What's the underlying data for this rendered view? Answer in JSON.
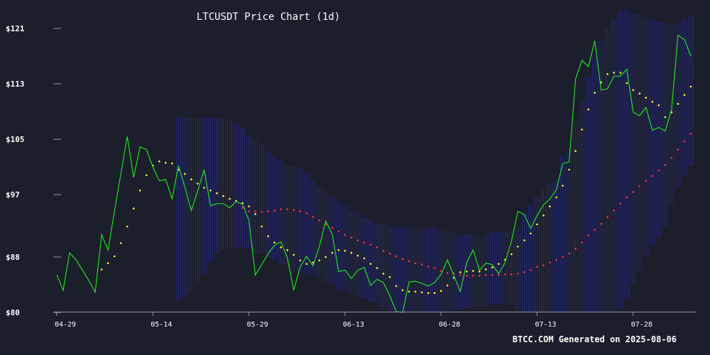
{
  "chart_data": {
    "type": "line",
    "title": "LTCUSDT Price Chart (1d)",
    "footer": "BTCC.COM Generated on 2025-08-06",
    "xlabel": "",
    "ylabel": "",
    "x_ticks": [
      "04-29",
      "05-14",
      "05-29",
      "06-13",
      "06-28",
      "07-13",
      "07-28"
    ],
    "y_ticks": [
      "$121",
      "$113",
      "$105",
      "$97",
      "$88",
      "$80"
    ],
    "xlim": [
      "2025-04-29",
      "2025-08-08"
    ],
    "ylim": [
      80,
      121
    ],
    "grid": false,
    "colors": {
      "background": "#1b1e2b",
      "price": "#22dd22",
      "sar": "#ffff33",
      "ma": "#ff3333",
      "bands": "#2b2e8f",
      "text": "#ffffff",
      "axis": "#999999"
    },
    "series": [
      {
        "key": "price",
        "values": [
          85.4,
          83.2,
          88.6,
          87.6,
          86.1,
          84.6,
          82.9,
          91.2,
          89.0,
          94.6,
          100.0,
          105.4,
          99.5,
          103.9,
          103.5,
          101.0,
          99.0,
          99.2,
          96.4,
          101.2,
          98.1,
          94.7,
          97.5,
          100.6,
          95.4,
          95.7,
          95.7,
          95.1,
          96.0,
          95.6,
          93.3,
          85.4,
          86.9,
          88.5,
          89.7,
          90.2,
          87.9,
          83.2,
          86.6,
          88.1,
          86.7,
          89.5,
          93.2,
          91.3,
          85.9,
          86.1,
          84.9,
          86.1,
          86.5,
          83.9,
          84.8,
          84.3,
          82.4,
          80.1,
          80.0,
          84.4,
          84.5,
          84.2,
          83.8,
          84.3,
          85.5,
          87.6,
          85.3,
          83.0,
          87.2,
          89.0,
          86.1,
          87.1,
          86.9,
          85.6,
          87.2,
          90.3,
          94.6,
          94.1,
          92.1,
          94.0,
          95.5,
          96.4,
          97.7,
          101.5,
          101.7,
          113.7,
          116.4,
          115.5,
          119.2,
          112.1,
          112.3,
          114.1,
          114.1,
          115.1,
          108.9,
          108.4,
          109.6,
          106.3,
          106.7,
          106.2,
          109.3,
          120.0,
          119.4,
          117.0
        ]
      },
      {
        "key": "sar",
        "values": [
          null,
          null,
          null,
          null,
          null,
          null,
          null,
          86.2,
          87.1,
          88.1,
          90.0,
          92.4,
          95.0,
          97.6,
          99.8,
          101.2,
          101.8,
          101.6,
          101.5,
          100.6,
          100.0,
          99.2,
          98.6,
          98.0,
          97.6,
          97.2,
          96.8,
          96.4,
          96.1,
          95.8,
          95.3,
          94.2,
          92.4,
          91.0,
          90.1,
          89.4,
          89.0,
          88.3,
          87.5,
          87.0,
          87.2,
          87.5,
          88.0,
          88.6,
          89.0,
          88.9,
          88.6,
          88.2,
          87.8,
          87.0,
          86.4,
          85.6,
          85.1,
          83.8,
          83.2,
          83.0,
          83.0,
          82.9,
          82.8,
          82.8,
          83.1,
          83.9,
          85.0,
          85.8,
          85.9,
          86.0,
          85.9,
          86.2,
          86.5,
          87.0,
          87.6,
          88.4,
          89.5,
          90.4,
          91.4,
          92.7,
          94.0,
          95.3,
          96.6,
          98.3,
          100.6,
          103.3,
          106.4,
          109.3,
          111.7,
          113.2,
          114.4,
          114.6,
          114.6,
          113.1,
          112.1,
          111.6,
          111.0,
          110.4,
          109.9,
          108.2,
          108.9,
          110.1,
          111.4,
          112.6
        ]
      },
      {
        "key": "ma",
        "values": [
          null,
          null,
          null,
          null,
          null,
          null,
          null,
          null,
          null,
          null,
          null,
          null,
          null,
          null,
          null,
          null,
          null,
          null,
          null,
          null,
          null,
          null,
          null,
          null,
          null,
          null,
          null,
          null,
          null,
          95.1,
          94.6,
          94.6,
          94.5,
          94.6,
          94.7,
          94.9,
          94.9,
          94.8,
          94.6,
          94.3,
          93.8,
          93.3,
          92.7,
          92.2,
          91.7,
          91.2,
          90.8,
          90.4,
          90.1,
          89.8,
          89.4,
          88.9,
          88.5,
          88.1,
          87.7,
          87.4,
          87.1,
          86.9,
          86.6,
          86.4,
          86.0,
          85.7,
          85.6,
          85.4,
          85.3,
          85.3,
          85.3,
          85.4,
          85.4,
          85.4,
          85.5,
          85.5,
          85.6,
          85.8,
          86.1,
          86.6,
          86.8,
          87.2,
          87.6,
          88.0,
          88.5,
          89.2,
          90.1,
          91.1,
          91.9,
          92.8,
          93.8,
          94.7,
          95.7,
          96.6,
          97.4,
          98.2,
          99.0,
          99.7,
          100.5,
          101.3,
          102.3,
          103.5,
          104.7,
          105.8
        ]
      },
      {
        "key": "band_upper",
        "values": [
          null,
          null,
          null,
          null,
          null,
          null,
          null,
          null,
          null,
          null,
          null,
          null,
          null,
          null,
          null,
          null,
          null,
          null,
          null,
          108.2,
          108.2,
          108.1,
          108.1,
          108.1,
          108.1,
          108.1,
          108.0,
          107.9,
          107.4,
          106.6,
          105.6,
          105.1,
          104.4,
          103.3,
          102.4,
          102.0,
          101.2,
          101.2,
          100.9,
          100.0,
          99.1,
          98.2,
          97.5,
          96.6,
          96.0,
          95.4,
          94.8,
          94.4,
          93.7,
          93.4,
          92.8,
          92.8,
          92.4,
          92.3,
          92.3,
          92.3,
          92.3,
          92.2,
          92.1,
          92.3,
          91.9,
          91.7,
          91.6,
          91.1,
          91.3,
          91.1,
          90.9,
          91.3,
          91.6,
          91.6,
          91.6,
          91.8,
          92.2,
          94.4,
          95.5,
          96.7,
          97.9,
          98.7,
          99.3,
          102.6,
          103.6,
          107.8,
          110.6,
          114.0,
          117.1,
          119.2,
          121.2,
          122.4,
          123.6,
          123.7,
          123.2,
          123.0,
          122.5,
          122.3,
          121.9,
          121.9,
          121.6,
          121.8,
          122.3,
          122.9
        ]
      },
      {
        "key": "band_lower",
        "values": [
          null,
          null,
          null,
          null,
          null,
          null,
          null,
          null,
          null,
          null,
          null,
          null,
          null,
          null,
          null,
          null,
          null,
          null,
          null,
          81.8,
          82.2,
          83.1,
          84.1,
          85.6,
          87.2,
          88.6,
          89.1,
          89.3,
          89.3,
          89.4,
          89.2,
          88.5,
          88.5,
          87.9,
          87.6,
          87.0,
          86.8,
          86.1,
          85.7,
          85.6,
          85.2,
          84.9,
          84.4,
          84.0,
          83.3,
          82.9,
          82.6,
          82.4,
          82.0,
          81.6,
          81.4,
          80.4,
          79.8,
          79.2,
          78.8,
          78.8,
          78.8,
          79.0,
          79.4,
          79.7,
          79.6,
          80.1,
          80.2,
          80.4,
          80.6,
          80.7,
          80.8,
          80.9,
          81.2,
          81.3,
          81.2,
          81.1,
          80.5,
          79.5,
          79.1,
          79.0,
          78.9,
          79.2,
          79.7,
          79.6,
          80.1,
          79.4,
          78.1,
          78.1,
          78.2,
          78.7,
          78.8,
          79.6,
          80.6,
          82.1,
          84.0,
          86.0,
          88.2,
          89.6,
          90.8,
          92.4,
          95.7,
          98.0,
          99.8,
          101.1
        ]
      }
    ]
  }
}
